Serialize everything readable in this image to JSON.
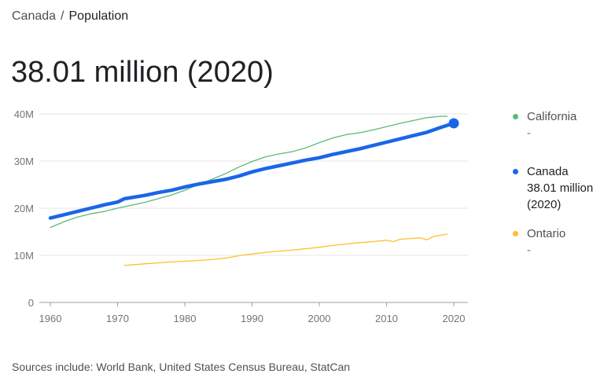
{
  "breadcrumb": {
    "parent": "Canada",
    "separator": "/",
    "current": "Population"
  },
  "headline": "38.01 million (2020)",
  "legend": [
    {
      "name": "California",
      "value": "-",
      "color": "#5bb974",
      "active": false
    },
    {
      "name": "Canada",
      "value": "38.01 million (2020)",
      "color": "#1a66e8",
      "active": true
    },
    {
      "name": "Ontario",
      "value": "-",
      "color": "#fbc02d",
      "active": false
    }
  ],
  "sources": "Sources include: World Bank, United States Census Bureau, StatCan",
  "chart_data": {
    "type": "line",
    "x_ticks": [
      1960,
      1970,
      1980,
      1990,
      2000,
      2010,
      2020
    ],
    "y_ticks": [
      {
        "value": 0,
        "label": "0"
      },
      {
        "value": 10,
        "label": "10M"
      },
      {
        "value": 20,
        "label": "20M"
      },
      {
        "value": 30,
        "label": "30M"
      },
      {
        "value": 40,
        "label": "40M"
      }
    ],
    "xlim": [
      1960,
      2020
    ],
    "ylim": [
      0,
      40
    ],
    "y_unit": "millions",
    "grid": true,
    "legend_position": "right",
    "highlight": {
      "series": "Canada",
      "x": 2020,
      "y": 38.01
    },
    "series": [
      {
        "name": "California",
        "color": "#5bb974",
        "points": [
          [
            1960,
            15.9
          ],
          [
            1962,
            17.1
          ],
          [
            1964,
            18.1
          ],
          [
            1966,
            18.8
          ],
          [
            1968,
            19.3
          ],
          [
            1970,
            20.0
          ],
          [
            1972,
            20.6
          ],
          [
            1974,
            21.2
          ],
          [
            1976,
            22.0
          ],
          [
            1978,
            22.8
          ],
          [
            1980,
            23.8
          ],
          [
            1982,
            25.0
          ],
          [
            1984,
            26.1
          ],
          [
            1986,
            27.3
          ],
          [
            1988,
            28.7
          ],
          [
            1990,
            29.9
          ],
          [
            1992,
            30.9
          ],
          [
            1994,
            31.5
          ],
          [
            1996,
            32.0
          ],
          [
            1998,
            32.8
          ],
          [
            2000,
            33.9
          ],
          [
            2002,
            34.9
          ],
          [
            2004,
            35.6
          ],
          [
            2006,
            36.0
          ],
          [
            2008,
            36.6
          ],
          [
            2010,
            37.3
          ],
          [
            2012,
            38.0
          ],
          [
            2014,
            38.6
          ],
          [
            2016,
            39.2
          ],
          [
            2018,
            39.5
          ],
          [
            2019,
            39.5
          ]
        ]
      },
      {
        "name": "Canada",
        "color": "#1a66e8",
        "points": [
          [
            1960,
            17.9
          ],
          [
            1962,
            18.6
          ],
          [
            1964,
            19.3
          ],
          [
            1966,
            20.0
          ],
          [
            1968,
            20.7
          ],
          [
            1970,
            21.3
          ],
          [
            1971,
            22.0
          ],
          [
            1974,
            22.7
          ],
          [
            1976,
            23.3
          ],
          [
            1978,
            23.8
          ],
          [
            1980,
            24.5
          ],
          [
            1982,
            25.1
          ],
          [
            1984,
            25.6
          ],
          [
            1986,
            26.1
          ],
          [
            1988,
            26.8
          ],
          [
            1990,
            27.7
          ],
          [
            1992,
            28.4
          ],
          [
            1994,
            29.0
          ],
          [
            1996,
            29.6
          ],
          [
            1998,
            30.2
          ],
          [
            2000,
            30.7
          ],
          [
            2002,
            31.4
          ],
          [
            2004,
            32.0
          ],
          [
            2006,
            32.6
          ],
          [
            2008,
            33.3
          ],
          [
            2010,
            34.0
          ],
          [
            2012,
            34.7
          ],
          [
            2014,
            35.4
          ],
          [
            2016,
            36.1
          ],
          [
            2018,
            37.1
          ],
          [
            2020,
            38.01
          ]
        ]
      },
      {
        "name": "Ontario",
        "color": "#fbc02d",
        "points": [
          [
            1971,
            7.85
          ],
          [
            1974,
            8.2
          ],
          [
            1976,
            8.4
          ],
          [
            1978,
            8.6
          ],
          [
            1980,
            8.75
          ],
          [
            1982,
            8.9
          ],
          [
            1984,
            9.1
          ],
          [
            1986,
            9.4
          ],
          [
            1988,
            9.9
          ],
          [
            1990,
            10.3
          ],
          [
            1992,
            10.6
          ],
          [
            1994,
            10.9
          ],
          [
            1996,
            11.1
          ],
          [
            1998,
            11.4
          ],
          [
            2000,
            11.7
          ],
          [
            2002,
            12.1
          ],
          [
            2004,
            12.4
          ],
          [
            2006,
            12.7
          ],
          [
            2008,
            12.9
          ],
          [
            2010,
            13.2
          ],
          [
            2011,
            12.9
          ],
          [
            2012,
            13.4
          ],
          [
            2014,
            13.6
          ],
          [
            2015,
            13.7
          ],
          [
            2016,
            13.3
          ],
          [
            2017,
            14.0
          ],
          [
            2019,
            14.5
          ]
        ]
      }
    ]
  }
}
